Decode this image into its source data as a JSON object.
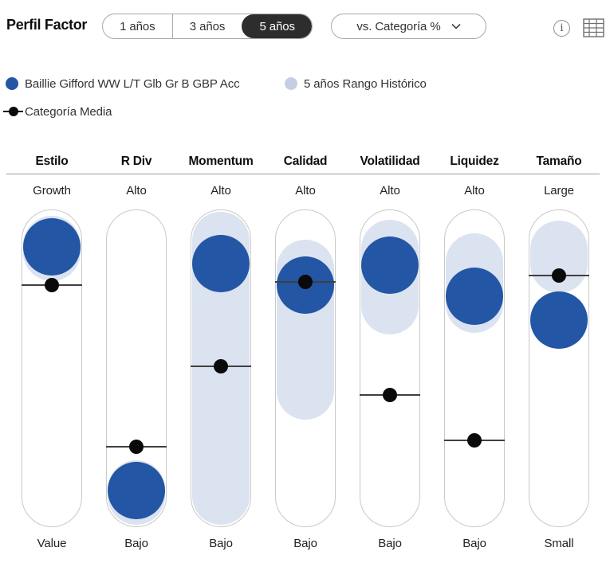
{
  "header": {
    "title": "Perfil Factor",
    "periods": [
      {
        "label": "1 años",
        "selected": false
      },
      {
        "label": "3 años",
        "selected": false
      },
      {
        "label": "5 años",
        "selected": true
      }
    ],
    "comparison": {
      "value": "vs. Categoría %"
    },
    "info_icon_glyph": "i"
  },
  "legend": {
    "fund_label": "Baillie Gifford WW L/T Glb Gr B GBP Acc",
    "range_label": "5 años Rango Histórico",
    "category_label": "Categoría Media"
  },
  "colors": {
    "fund_blue": "#2356a4",
    "range_blue": "#dbe2f0",
    "legend_range_dot": "#c5cfe4",
    "category_marker": "#0a0a0a",
    "selected_segment": "#2d2d2d"
  },
  "factors": [
    {
      "header": "Estilo",
      "top": "Growth",
      "bottom": "Value"
    },
    {
      "header": "R Div",
      "top": "Alto",
      "bottom": "Bajo"
    },
    {
      "header": "Momentum",
      "top": "Alto",
      "bottom": "Bajo"
    },
    {
      "header": "Calidad",
      "top": "Alto",
      "bottom": "Bajo"
    },
    {
      "header": "Volatilidad",
      "top": "Alto",
      "bottom": "Bajo"
    },
    {
      "header": "Liquidez",
      "top": "Alto",
      "bottom": "Bajo"
    },
    {
      "header": "Tamaño",
      "top": "Large",
      "bottom": "Small"
    }
  ],
  "chart_data": {
    "type": "scatter",
    "title": "Perfil Factor",
    "period_selected": "5 años",
    "comparison": "vs. Categoría %",
    "categories": [
      "Estilo",
      "R Div",
      "Momentum",
      "Calidad",
      "Volatilidad",
      "Liquidez",
      "Tamaño"
    ],
    "scale": {
      "note": "values are percent from top of each factor capsule; 0 = top label, 100 = bottom label",
      "top_labels": [
        "Growth",
        "Alto",
        "Alto",
        "Alto",
        "Alto",
        "Alto",
        "Large"
      ],
      "bottom_labels": [
        "Value",
        "Bajo",
        "Bajo",
        "Bajo",
        "Bajo",
        "Bajo",
        "Small"
      ]
    },
    "series": [
      {
        "name": "Baillie Gifford WW L/T Glb Gr B GBP Acc",
        "marker": "filled-circle",
        "color": "#2356a4",
        "values_pct_from_top": [
          11.5,
          88.7,
          16.8,
          23.6,
          17.3,
          27.1,
          34.8
        ]
      },
      {
        "name": "Categoría Media",
        "marker": "dot-on-line",
        "color": "#0a0a0a",
        "values_pct_from_top": [
          23.6,
          74.9,
          49.4,
          22.6,
          58.4,
          72.7,
          20.6
        ]
      },
      {
        "name": "5 años Rango Histórico",
        "marker": "band",
        "color": "#dbe2f0",
        "ranges_pct_from_top": [
          [
            1.8,
            22.3
          ],
          [
            79.0,
            99.5
          ],
          [
            0.5,
            99.5
          ],
          [
            9.3,
            66.2
          ],
          [
            3.0,
            39.3
          ],
          [
            7.3,
            38.8
          ],
          [
            3.3,
            26.3
          ]
        ]
      }
    ],
    "legend_position": "top-left",
    "grid": false
  }
}
